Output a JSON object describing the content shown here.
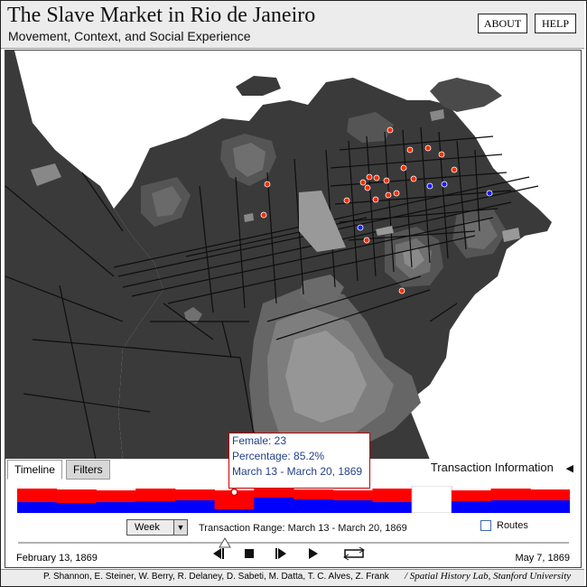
{
  "header": {
    "title": "The Slave Market in Rio de Janeiro",
    "subtitle": "Movement, Context, and Social Experience",
    "about_label": "ABOUT",
    "help_label": "HELP"
  },
  "tabs": [
    {
      "label": "Timeline",
      "active": true
    },
    {
      "label": "Filters",
      "active": false
    }
  ],
  "transaction_info": {
    "label": "Transaction Information",
    "icon": "triangle-left-icon"
  },
  "tooltip": {
    "female": "Female: 23",
    "percentage": "Percentage: 85.2%",
    "range": "March 13 - March 20, 1869"
  },
  "timeline": {
    "interval_select": "Week",
    "range_label": "Transaction Range:",
    "range_value": "March 13 - March 20, 1869",
    "routes_label": "Routes",
    "start_date": "February 13, 1869",
    "end_date": "May 7, 1869",
    "female_share": [
      0.4,
      0.36,
      0.4,
      0.45,
      0.47,
      0.15,
      0.58,
      0.5,
      0.48,
      0.4,
      0.0,
      0.45,
      0.48,
      0.47
    ],
    "bar_colors": {
      "female": "#ff0000",
      "male": "#0000ff",
      "empty": "#ffffff"
    },
    "selected_week": 5
  },
  "controls": {
    "step_back": "step-back-icon",
    "stop": "stop-icon",
    "step_forward": "step-forward-icon",
    "play": "play-icon",
    "loop": "loop-icon"
  },
  "footer": {
    "credits": "P. Shannon, E. Steiner, W. Berry, R. Delaney, D. Sabeti, M. Datta, T. C. Alves, Z. Frank",
    "lab": "/ Spatial History Lab, Stanford University"
  },
  "map": {
    "land_color": "#3a3a3a",
    "water_color": "#ffffff",
    "hill_colors": [
      "#555555",
      "#6a6a6a",
      "#808080",
      "#9a9a9a"
    ],
    "market_colors": {
      "female": "#ff2a00",
      "male": "#1a1aff"
    }
  }
}
